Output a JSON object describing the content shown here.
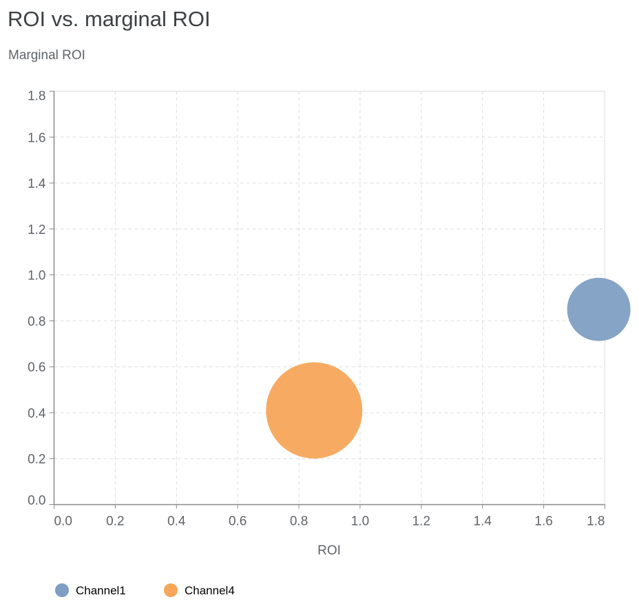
{
  "chart_data": {
    "type": "scatter",
    "title": "ROI vs. marginal ROI",
    "xlabel": "ROI",
    "ylabel": "Marginal ROI",
    "xlim": [
      0,
      1.8
    ],
    "ylim": [
      0,
      1.8
    ],
    "xticks": [
      "0.0",
      "0.2",
      "0.4",
      "0.6",
      "0.8",
      "1.0",
      "1.2",
      "1.4",
      "1.6",
      "1.8"
    ],
    "yticks": [
      "0.0",
      "0.2",
      "0.4",
      "0.6",
      "0.8",
      "1.0",
      "1.2",
      "1.4",
      "1.6",
      "1.8"
    ],
    "grid": true,
    "legend_placement": "bottom-left",
    "series": [
      {
        "name": "Channel1",
        "color": "#7e9fc3",
        "x": 1.78,
        "y": 0.85
      },
      {
        "name": "Channel4",
        "color": "#f7a65a",
        "x": 0.85,
        "y": 0.41
      }
    ]
  }
}
